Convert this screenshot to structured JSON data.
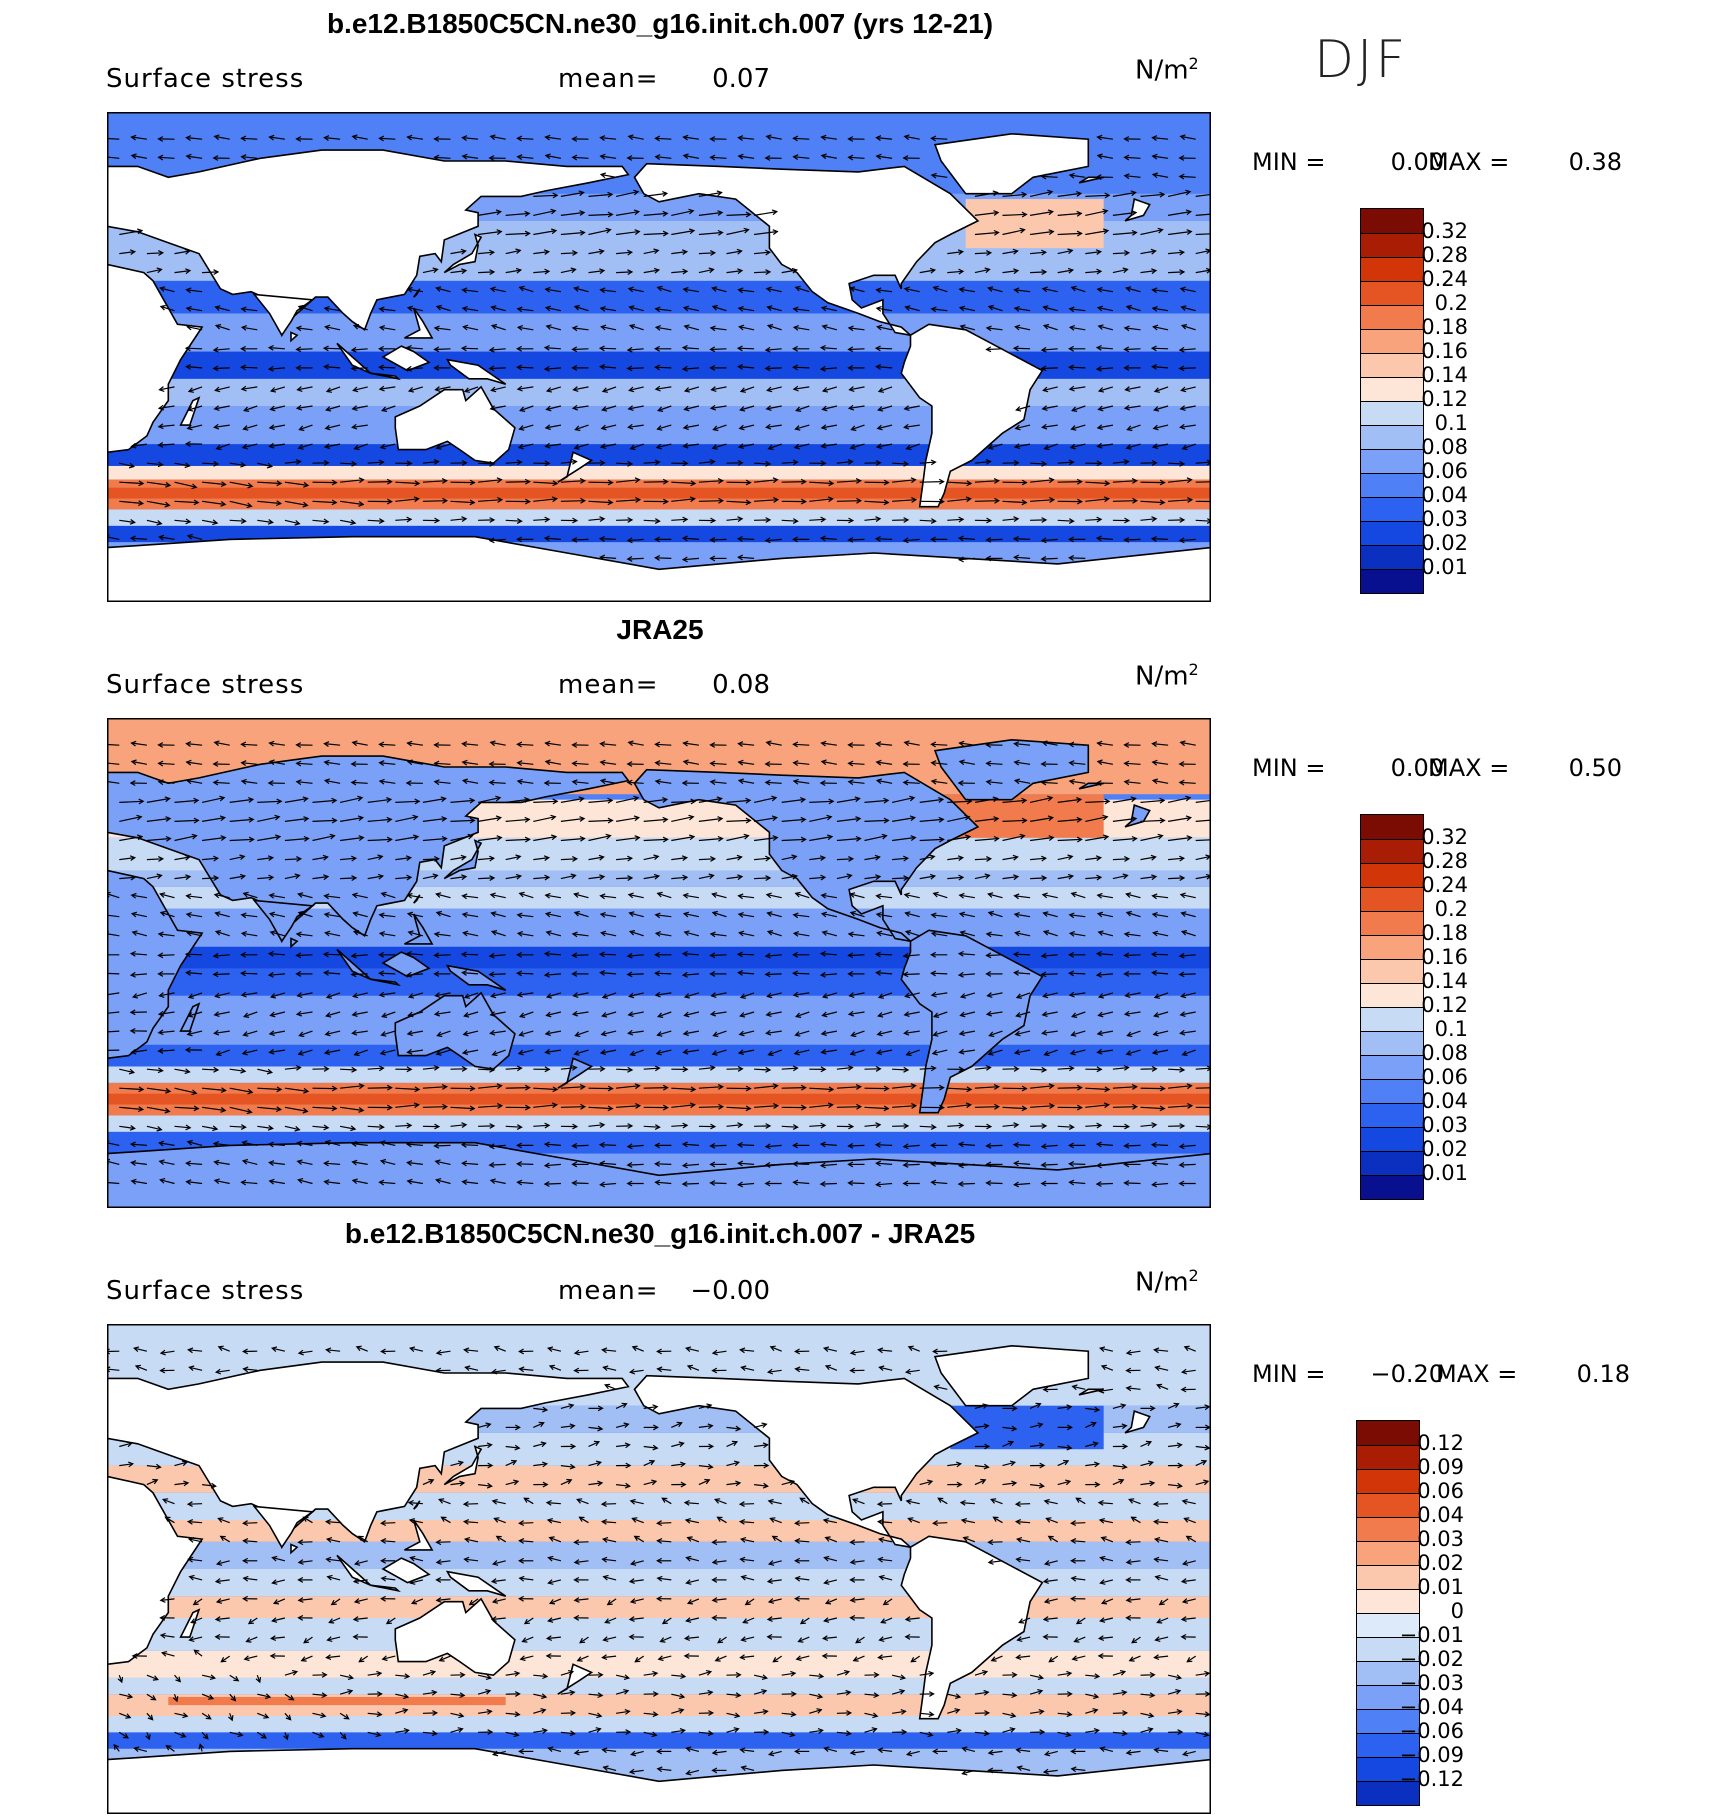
{
  "season": "DJF",
  "units_base": "N/m",
  "units_exp": "2",
  "mean_label": "mean=",
  "min_label": "MIN =",
  "max_label": "MAX =",
  "colors": {
    "levels_pos": [
      "#08108f",
      "#0b2fbf",
      "#1448e0",
      "#2d62f0",
      "#4f80f5",
      "#7aa1f7",
      "#a2bff5",
      "#c8dbf5",
      "#fde6d8",
      "#fbc8ad",
      "#f8a37c",
      "#f27b4d",
      "#e55524",
      "#d23508",
      "#a91d05",
      "#7a0c03"
    ],
    "ocean_base": "#4f80f5",
    "land": "#ffffff",
    "coast": "#000000"
  },
  "panels": [
    {
      "title": "b.e12.B1850C5CN.ne30_g16.init.ch.007 (yrs 12-21)",
      "variable": "Surface stress",
      "mean": "0.07",
      "min": "0.00",
      "max": "0.38",
      "colorbar_labels": [
        "0.32",
        "0.28",
        "0.24",
        "0.2",
        "0.18",
        "0.16",
        "0.14",
        "0.12",
        "0.1",
        "0.08",
        "0.06",
        "0.04",
        "0.03",
        "0.02",
        "0.01"
      ],
      "field": "model"
    },
    {
      "title": "JRA25",
      "variable": "Surface stress",
      "mean": "0.08",
      "min": "0.00",
      "max": "0.50",
      "colorbar_labels": [
        "0.32",
        "0.28",
        "0.24",
        "0.2",
        "0.18",
        "0.16",
        "0.14",
        "0.12",
        "0.1",
        "0.08",
        "0.06",
        "0.04",
        "0.03",
        "0.02",
        "0.01"
      ],
      "field": "obs"
    },
    {
      "title": "b.e12.B1850C5CN.ne30_g16.init.ch.007 - JRA25",
      "variable": "Surface stress",
      "mean": "−0.00",
      "min": "−0.20",
      "max": "0.18",
      "colorbar_labels": [
        "0.12",
        "0.09",
        "0.06",
        "0.04",
        "0.03",
        "0.02",
        "0.01",
        "0",
        "−0.01",
        "−0.02",
        "−0.03",
        "−0.04",
        "−0.06",
        "−0.09",
        "−0.12"
      ],
      "field": "diff"
    }
  ]
}
